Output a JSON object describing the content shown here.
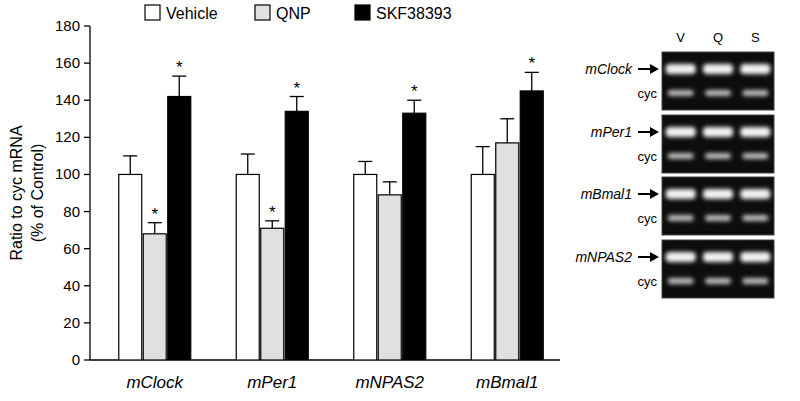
{
  "chart_data": {
    "type": "bar",
    "ylabel": [
      "Ratio to cyc  mRNA",
      "(% of Control)"
    ],
    "categories": [
      "mClock",
      "mPer1",
      "mNPAS2",
      "mBmal1"
    ],
    "series": [
      {
        "name": "Vehicle",
        "color": "#ffffff",
        "values": [
          100,
          100,
          100,
          100
        ],
        "errors": [
          10,
          11,
          7,
          15
        ],
        "annotations": [
          null,
          null,
          null,
          null
        ]
      },
      {
        "name": "QNP",
        "color": "#e0e0e0",
        "values": [
          68,
          71,
          89,
          117
        ],
        "errors": [
          6,
          4,
          7,
          13
        ],
        "annotations": [
          "*",
          "*",
          null,
          null
        ]
      },
      {
        "name": "SKF38393",
        "color": "#000000",
        "values": [
          142,
          134,
          133,
          145
        ],
        "errors": [
          11,
          8,
          7,
          10
        ],
        "annotations": [
          "*",
          "*",
          "*",
          "*"
        ]
      }
    ],
    "ylim": [
      0,
      180
    ],
    "yticks": [
      0,
      20,
      40,
      60,
      80,
      100,
      120,
      140,
      160,
      180
    ],
    "grid": false,
    "legend": "top"
  },
  "gel": {
    "lanes": [
      "V",
      "Q",
      "S"
    ],
    "blots": [
      {
        "gene": "mClock",
        "reference": "cyc"
      },
      {
        "gene": "mPer1",
        "reference": "cyc"
      },
      {
        "gene": "mBmal1",
        "reference": "cyc"
      },
      {
        "gene": "mNPAS2",
        "reference": "cyc"
      }
    ]
  }
}
